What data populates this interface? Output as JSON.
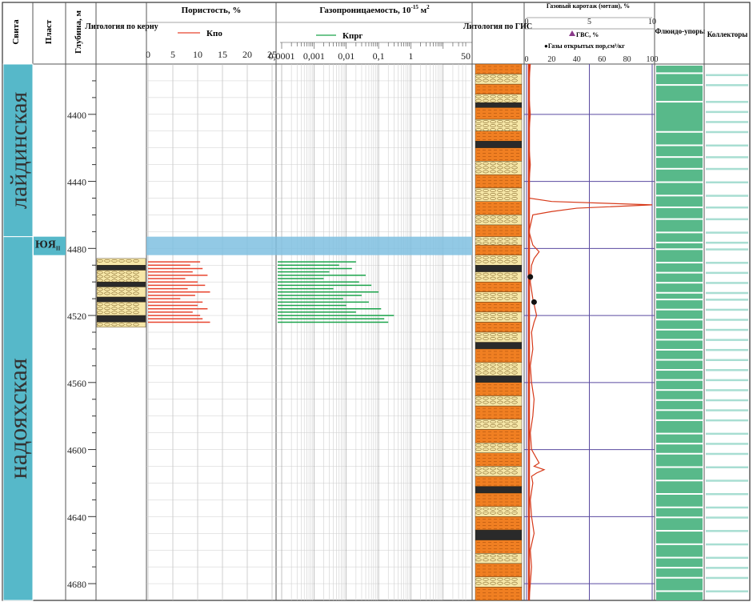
{
  "colors": {
    "formation_fill": "#56b8c9",
    "interval_fill": "#7fbfe0",
    "kpo_color": "#e8442e",
    "kprg_color": "#1aa34a",
    "gis_orange": "#f07f22",
    "gis_cream": "#f6e7a8",
    "gis_dark": "#2a2a2a",
    "gas_curve": "#d73a1a",
    "gas_grid": "#5a4aa0",
    "fluid_green": "#58b98a",
    "collector_light": "#a8ded2"
  },
  "headers": {
    "svita": "Свита",
    "plast": "Пласт",
    "depth": "Глубина, м",
    "lith_core": "Литология по керну",
    "porosity": "Пористость, %",
    "porosity_legend": "Кпо",
    "permeability": "Газопроницаемость, 10",
    "permeability_exp": "-15",
    "permeability_unit": " м",
    "permeability_unit_exp": "2",
    "permeability_legend": "Кпрг",
    "lith_gis": "Литология по ГИС",
    "gas_log": "Газовый каротаж (метан), %",
    "gvs": "ГВС, %",
    "gas_pores": "●Газы открытых пор,см³/кг",
    "fluid_seals": "Флюидо-упоры",
    "collectors": "Коллекторы"
  },
  "formations": [
    {
      "name": "лайдинская",
      "from": 4370,
      "to": 4473
    },
    {
      "name": "надояхская",
      "from": 4473,
      "to": 4690
    }
  ],
  "plast": {
    "label": "ЮЯ",
    "sub": "II",
    "from": 4473,
    "to": 4484
  },
  "interval": {
    "from": 4473,
    "to": 4484
  },
  "depth_axis": {
    "min": 4370,
    "max": 4690,
    "labels": [
      4400,
      4440,
      4480,
      4520,
      4560,
      4600,
      4640,
      4680
    ]
  },
  "chart_data": [
    {
      "type": "bar",
      "title": "Пористость, %",
      "series_name": "Кпо",
      "xlim": [
        0,
        25
      ],
      "xticks": [
        "0",
        "5",
        "10",
        "15",
        "20",
        "25"
      ],
      "depths": [
        4488,
        4490,
        4492,
        4494,
        4496,
        4498,
        4500,
        4502,
        4504,
        4506,
        4508,
        4510,
        4512,
        4514,
        4516,
        4518,
        4520,
        4522,
        4524
      ],
      "values": [
        10.5,
        8.5,
        11.0,
        9.0,
        12.0,
        7.5,
        10.0,
        11.5,
        8.0,
        12.5,
        9.5,
        6.5,
        11.0,
        10.0,
        12.0,
        9.0,
        10.5,
        11.0,
        12.5
      ]
    },
    {
      "type": "bar",
      "title": "Газопроницаемость",
      "series_name": "Кпрг",
      "scale": "log",
      "xlim": [
        0.0001,
        50
      ],
      "xticks": [
        "0,0001",
        "0,001",
        "0,01",
        "0,1",
        "1",
        "50"
      ],
      "depths": [
        4488,
        4490,
        4492,
        4494,
        4496,
        4498,
        4500,
        4502,
        4504,
        4506,
        4508,
        4510,
        4512,
        4514,
        4516,
        4518,
        4520,
        4522,
        4524
      ],
      "values": [
        0.02,
        0.006,
        0.015,
        0.003,
        0.04,
        0.002,
        0.025,
        0.06,
        0.004,
        0.1,
        0.03,
        0.008,
        0.05,
        0.01,
        0.12,
        0.02,
        0.3,
        0.15,
        0.2
      ]
    },
    {
      "type": "line",
      "title": "Газовый каротаж (метан), %",
      "series_name": "ГВС, %",
      "scale_top": "0-10 %",
      "xticks_top": [
        "0",
        "5",
        "10"
      ],
      "xticks_bottom": [
        "0",
        "20",
        "40",
        "60",
        "80",
        "100"
      ],
      "xlim": [
        0,
        100
      ],
      "depths": [
        4370,
        4380,
        4390,
        4400,
        4410,
        4420,
        4430,
        4440,
        4450,
        4452,
        4454,
        4456,
        4458,
        4460,
        4470,
        4478,
        4482,
        4486,
        4490,
        4500,
        4510,
        4520,
        4524,
        4530,
        4540,
        4550,
        4560,
        4570,
        4580,
        4590,
        4600,
        4608,
        4610,
        4612,
        4614,
        4616,
        4620,
        4630,
        4640,
        4650,
        4660,
        4670,
        4680,
        4690
      ],
      "values": [
        3,
        2,
        2,
        3,
        2,
        2,
        3,
        2,
        2,
        20,
        100,
        40,
        20,
        5,
        2,
        5,
        10,
        6,
        4,
        3,
        5,
        8,
        6,
        4,
        5,
        3,
        4,
        6,
        5,
        3,
        4,
        10,
        6,
        14,
        8,
        4,
        5,
        3,
        4,
        6,
        3,
        4,
        3,
        2
      ],
      "points_name": "Газы открытых пор,см³/кг",
      "points": [
        {
          "depth": 4497,
          "value": 3
        },
        {
          "depth": 4512,
          "value": 6
        }
      ]
    }
  ],
  "lith_gis_layers": [
    {
      "from": 4370,
      "to": 4376,
      "t": "o"
    },
    {
      "from": 4376,
      "to": 4382,
      "t": "c"
    },
    {
      "from": 4382,
      "to": 4388,
      "t": "o"
    },
    {
      "from": 4388,
      "to": 4393,
      "t": "c"
    },
    {
      "from": 4393,
      "to": 4396,
      "t": "d"
    },
    {
      "from": 4396,
      "to": 4403,
      "t": "o"
    },
    {
      "from": 4403,
      "to": 4410,
      "t": "c"
    },
    {
      "from": 4410,
      "to": 4416,
      "t": "o"
    },
    {
      "from": 4416,
      "to": 4420,
      "t": "d"
    },
    {
      "from": 4420,
      "to": 4428,
      "t": "o"
    },
    {
      "from": 4428,
      "to": 4436,
      "t": "c"
    },
    {
      "from": 4436,
      "to": 4444,
      "t": "o"
    },
    {
      "from": 4444,
      "to": 4452,
      "t": "c"
    },
    {
      "from": 4452,
      "to": 4460,
      "t": "o"
    },
    {
      "from": 4460,
      "to": 4466,
      "t": "c"
    },
    {
      "from": 4466,
      "to": 4473,
      "t": "o"
    },
    {
      "from": 4473,
      "to": 4478,
      "t": "c"
    },
    {
      "from": 4478,
      "to": 4484,
      "t": "o"
    },
    {
      "from": 4484,
      "to": 4490,
      "t": "c"
    },
    {
      "from": 4490,
      "to": 4494,
      "t": "d"
    },
    {
      "from": 4494,
      "to": 4500,
      "t": "c"
    },
    {
      "from": 4500,
      "to": 4506,
      "t": "o"
    },
    {
      "from": 4506,
      "to": 4512,
      "t": "c"
    },
    {
      "from": 4512,
      "to": 4518,
      "t": "o"
    },
    {
      "from": 4518,
      "to": 4524,
      "t": "c"
    },
    {
      "from": 4524,
      "to": 4530,
      "t": "o"
    },
    {
      "from": 4530,
      "to": 4536,
      "t": "c"
    },
    {
      "from": 4536,
      "to": 4540,
      "t": "d"
    },
    {
      "from": 4540,
      "to": 4548,
      "t": "o"
    },
    {
      "from": 4548,
      "to": 4556,
      "t": "c"
    },
    {
      "from": 4556,
      "to": 4560,
      "t": "d"
    },
    {
      "from": 4560,
      "to": 4568,
      "t": "o"
    },
    {
      "from": 4568,
      "to": 4574,
      "t": "c"
    },
    {
      "from": 4574,
      "to": 4582,
      "t": "o"
    },
    {
      "from": 4582,
      "to": 4588,
      "t": "c"
    },
    {
      "from": 4588,
      "to": 4596,
      "t": "o"
    },
    {
      "from": 4596,
      "to": 4602,
      "t": "c"
    },
    {
      "from": 4602,
      "to": 4610,
      "t": "o"
    },
    {
      "from": 4610,
      "to": 4616,
      "t": "c"
    },
    {
      "from": 4616,
      "to": 4622,
      "t": "o"
    },
    {
      "from": 4622,
      "to": 4626,
      "t": "d"
    },
    {
      "from": 4626,
      "to": 4634,
      "t": "o"
    },
    {
      "from": 4634,
      "to": 4640,
      "t": "c"
    },
    {
      "from": 4640,
      "to": 4648,
      "t": "o"
    },
    {
      "from": 4648,
      "to": 4654,
      "t": "d"
    },
    {
      "from": 4654,
      "to": 4662,
      "t": "o"
    },
    {
      "from": 4662,
      "to": 4668,
      "t": "c"
    },
    {
      "from": 4668,
      "to": 4676,
      "t": "o"
    },
    {
      "from": 4676,
      "to": 4682,
      "t": "c"
    },
    {
      "from": 4682,
      "to": 4690,
      "t": "o"
    }
  ],
  "lith_core_layers": [
    {
      "from": 4486,
      "to": 4490,
      "t": "c"
    },
    {
      "from": 4490,
      "to": 4493,
      "t": "d"
    },
    {
      "from": 4493,
      "to": 4500,
      "t": "c"
    },
    {
      "from": 4500,
      "to": 4503,
      "t": "d"
    },
    {
      "from": 4503,
      "to": 4509,
      "t": "c"
    },
    {
      "from": 4509,
      "to": 4512,
      "t": "d"
    },
    {
      "from": 4512,
      "to": 4520,
      "t": "c"
    },
    {
      "from": 4520,
      "to": 4524,
      "t": "d"
    },
    {
      "from": 4524,
      "to": 4527,
      "t": "c"
    }
  ],
  "fluid_seal_gaps": [
    4375,
    4382,
    4392,
    4410,
    4418,
    4425,
    4432,
    4440,
    4448,
    4455,
    4462,
    4470,
    4476,
    4480,
    4488,
    4494,
    4500,
    4506,
    4510,
    4516,
    4522,
    4528,
    4534,
    4540,
    4546,
    4552,
    4558,
    4564,
    4570,
    4576,
    4582,
    4590,
    4596,
    4602,
    4610,
    4618,
    4626,
    4634,
    4640,
    4648,
    4656,
    4664,
    4670,
    4676,
    4684
  ],
  "collector_bands": [
    4376,
    4382,
    4392,
    4398,
    4404,
    4410,
    4418,
    4425,
    4432,
    4440,
    4448,
    4455,
    4462,
    4470,
    4476,
    4480,
    4488,
    4494,
    4500,
    4506,
    4510,
    4516,
    4522,
    4528,
    4534,
    4540,
    4546,
    4552,
    4558,
    4564,
    4570,
    4576,
    4582,
    4590,
    4596,
    4602,
    4610,
    4618,
    4626,
    4634,
    4640,
    4648,
    4656,
    4664,
    4670,
    4676,
    4684
  ]
}
